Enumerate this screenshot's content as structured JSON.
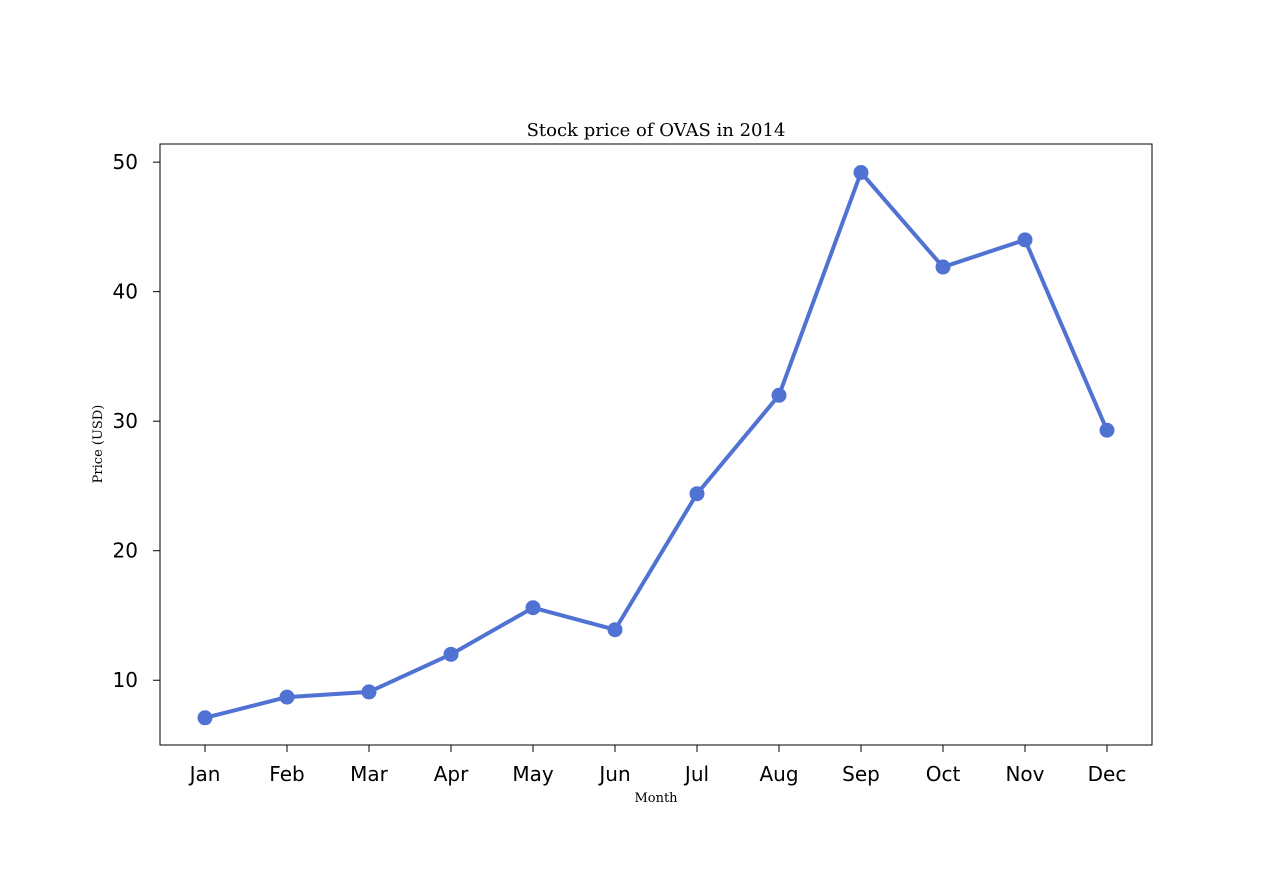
{
  "chart_data": {
    "type": "line",
    "title": "Stock price of OVAS in 2014",
    "xlabel": "Month",
    "ylabel": "Price (USD)",
    "categories": [
      "Jan",
      "Feb",
      "Mar",
      "Apr",
      "May",
      "Jun",
      "Jul",
      "Aug",
      "Sep",
      "Oct",
      "Nov",
      "Dec"
    ],
    "series": [
      {
        "values": [
          7.1,
          8.7,
          9.1,
          12.0,
          15.6,
          13.9,
          24.4,
          32.0,
          49.2,
          41.9,
          44.0,
          29.3
        ],
        "color": "#4f72d3"
      }
    ],
    "yticks": [
      10,
      20,
      30,
      40,
      50
    ],
    "ylim": [
      5.0,
      51.4
    ],
    "grid": false,
    "legend": "none"
  }
}
